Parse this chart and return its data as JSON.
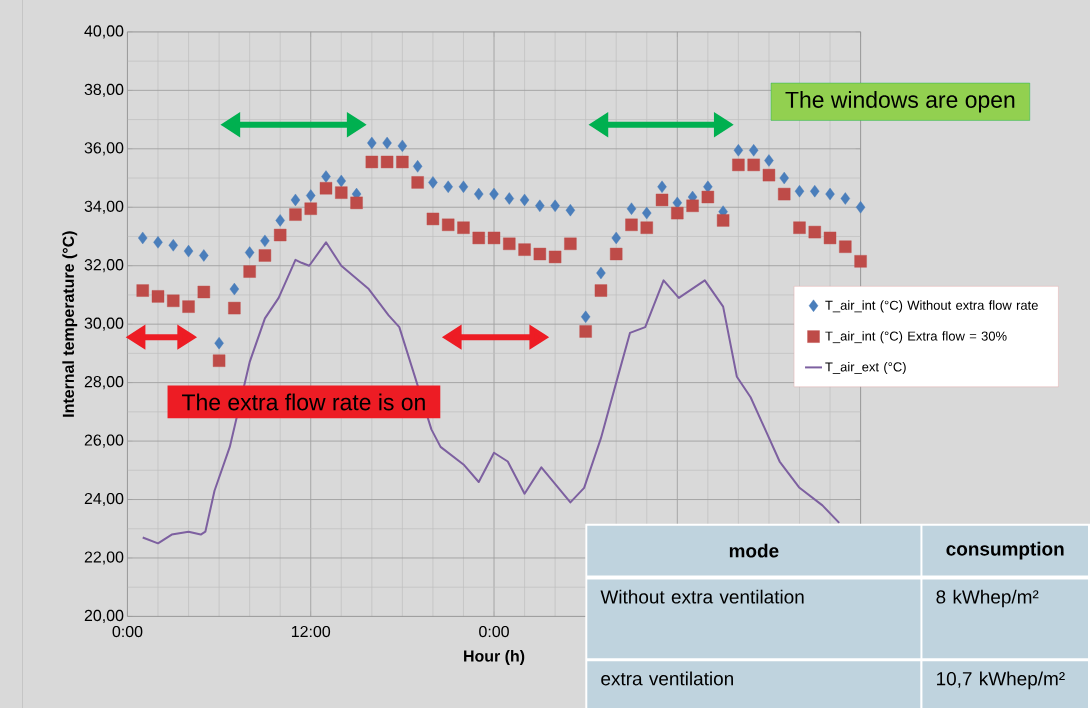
{
  "chart_data": {
    "type": "scatter",
    "xlabel": "Hour (h)",
    "ylabel": "Internal temperature (°C)",
    "xlim": [
      0,
      48
    ],
    "ylim": [
      20,
      40
    ],
    "xticks": [
      {
        "value": 0,
        "label": "0:00"
      },
      {
        "value": 12,
        "label": "12:00"
      },
      {
        "value": 24,
        "label": "0:00"
      },
      {
        "value": 36,
        "label": null
      },
      {
        "value": 48,
        "label": null
      }
    ],
    "yticks": [
      {
        "value": 20,
        "label": "20,00"
      },
      {
        "value": 22,
        "label": "22,00"
      },
      {
        "value": 24,
        "label": "24,00"
      },
      {
        "value": 26,
        "label": "26,00"
      },
      {
        "value": 28,
        "label": "28,00"
      },
      {
        "value": 30,
        "label": "30,00"
      },
      {
        "value": 32,
        "label": "32,00"
      },
      {
        "value": 34,
        "label": "34,00"
      },
      {
        "value": 36,
        "label": "36,00"
      },
      {
        "value": 38,
        "label": "38,00"
      },
      {
        "value": 40,
        "label": "40,00"
      }
    ],
    "grid": true,
    "legend": "right",
    "series": [
      {
        "name": "T_air_int (°C) Without extra flow rate",
        "marker": "diamond",
        "color": "#4a7ebb",
        "x": [
          1,
          2,
          3,
          4,
          5,
          6,
          7,
          8,
          9,
          10,
          11,
          12,
          13,
          14,
          15,
          16,
          17,
          18,
          19,
          20,
          21,
          22,
          23,
          24,
          25,
          26,
          27,
          28,
          29,
          30,
          31,
          32,
          33,
          34,
          35,
          36,
          37,
          38,
          39,
          40,
          41,
          42,
          43,
          44,
          45,
          46,
          47,
          48
        ],
        "values": [
          32.95,
          32.8,
          32.7,
          32.5,
          32.35,
          29.35,
          31.2,
          32.45,
          32.85,
          33.55,
          34.25,
          34.4,
          35.05,
          34.9,
          34.45,
          36.2,
          36.2,
          36.1,
          35.4,
          34.85,
          34.7,
          34.7,
          34.45,
          34.45,
          34.3,
          34.25,
          34.05,
          34.05,
          33.9,
          30.25,
          31.75,
          32.95,
          33.95,
          33.8,
          34.7,
          34.15,
          34.35,
          34.7,
          33.85,
          35.95,
          35.95,
          35.6,
          35.0,
          34.55,
          34.55,
          34.45,
          34.3,
          34.0
        ]
      },
      {
        "name": "T_air_int (°C) Extra flow = 30%",
        "marker": "square",
        "color": "#be4b48",
        "x": [
          1,
          2,
          3,
          4,
          5,
          6,
          7,
          8,
          9,
          10,
          11,
          12,
          13,
          14,
          15,
          16,
          17,
          18,
          19,
          20,
          21,
          22,
          23,
          24,
          25,
          26,
          27,
          28,
          29,
          30,
          31,
          32,
          33,
          34,
          35,
          36,
          37,
          38,
          39,
          40,
          41,
          42,
          43,
          44,
          45,
          46,
          47,
          48
        ],
        "values": [
          31.15,
          30.95,
          30.8,
          30.6,
          31.1,
          28.75,
          30.55,
          31.8,
          32.35,
          33.05,
          33.75,
          33.95,
          34.65,
          34.5,
          34.15,
          35.55,
          35.55,
          35.55,
          34.85,
          33.6,
          33.4,
          33.3,
          32.95,
          32.95,
          32.75,
          32.55,
          32.4,
          32.3,
          32.75,
          29.75,
          31.15,
          32.4,
          33.4,
          33.3,
          34.25,
          33.8,
          34.05,
          34.35,
          33.55,
          35.45,
          35.45,
          35.1,
          34.45,
          33.3,
          33.15,
          32.95,
          32.65,
          32.15
        ]
      },
      {
        "name": "T_air_ext (°C)",
        "type": "line",
        "marker": "none",
        "color": "#7d60a0",
        "x": [
          1.0,
          2.0,
          2.9,
          4.0,
          4.8,
          5.1,
          5.7,
          6.7,
          8.0,
          9.0,
          9.9,
          11.0,
          11.4,
          11.9,
          13.0,
          14.0,
          15.8,
          17.1,
          17.8,
          18.7,
          19.9,
          20.5,
          22.0,
          23.0,
          24.0,
          24.9,
          26.0,
          27.1,
          29.0,
          29.9,
          31.0,
          32.0,
          32.9,
          33.9,
          35.1,
          36.1,
          37.8,
          39.0,
          39.9,
          40.8,
          42.7,
          44.0,
          45.5,
          46.6
        ],
        "values": [
          22.7,
          22.5,
          22.8,
          22.9,
          22.8,
          22.9,
          24.3,
          25.8,
          28.7,
          30.2,
          30.9,
          32.2,
          32.1,
          32.0,
          32.8,
          32.0,
          31.2,
          30.3,
          29.9,
          28.4,
          26.4,
          25.8,
          25.2,
          24.6,
          25.6,
          25.3,
          24.2,
          25.1,
          23.9,
          24.4,
          26.1,
          28.0,
          29.7,
          29.9,
          31.5,
          30.9,
          31.5,
          30.6,
          28.2,
          27.5,
          25.3,
          24.4,
          23.8,
          23.2
        ]
      }
    ],
    "annotations": [
      "The windows are open",
      "The extra flow rate is on",
      "mode",
      "consumption",
      "Without extra ventilation",
      "8 kWhep/m²",
      "extra ventilation",
      "10,7 kWhep/m²"
    ]
  }
}
